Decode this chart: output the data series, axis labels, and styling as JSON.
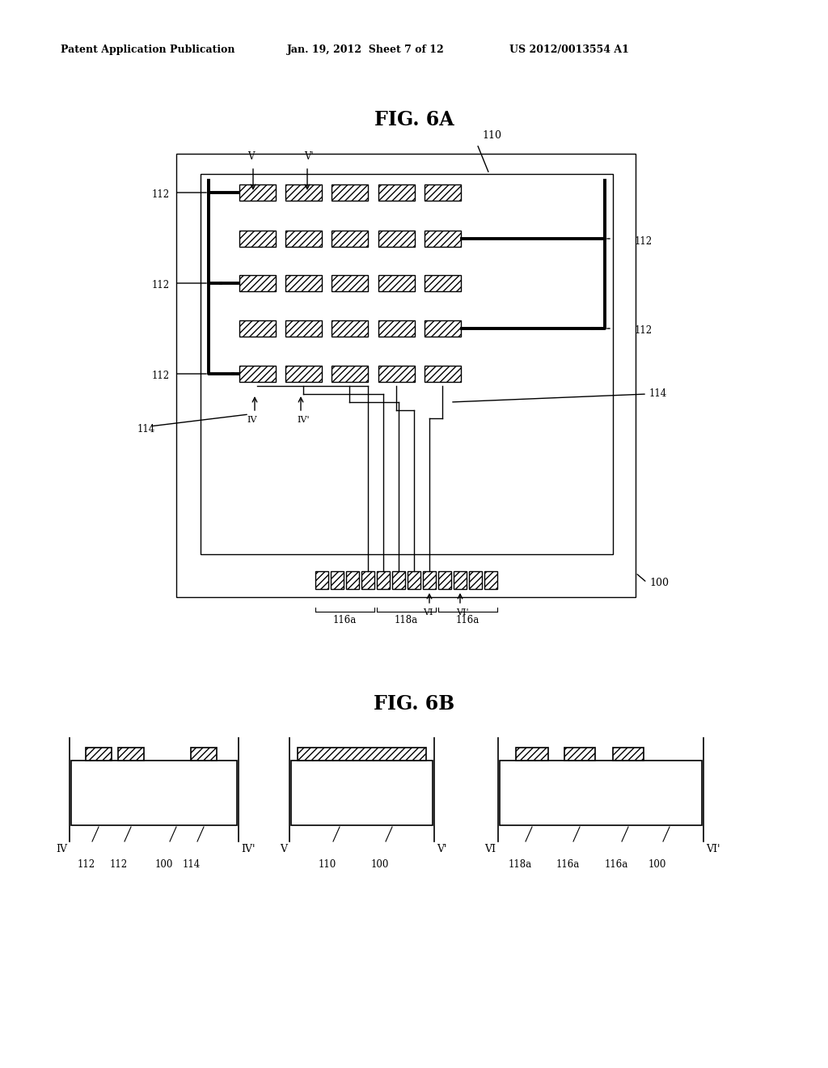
{
  "title_6a": "FIG. 6A",
  "title_6b": "FIG. 6B",
  "header_left": "Patent Application Publication",
  "header_mid": "Jan. 19, 2012  Sheet 7 of 12",
  "header_right": "US 2012/0013554 A1",
  "bg_color": "#ffffff",
  "line_color": "#000000"
}
